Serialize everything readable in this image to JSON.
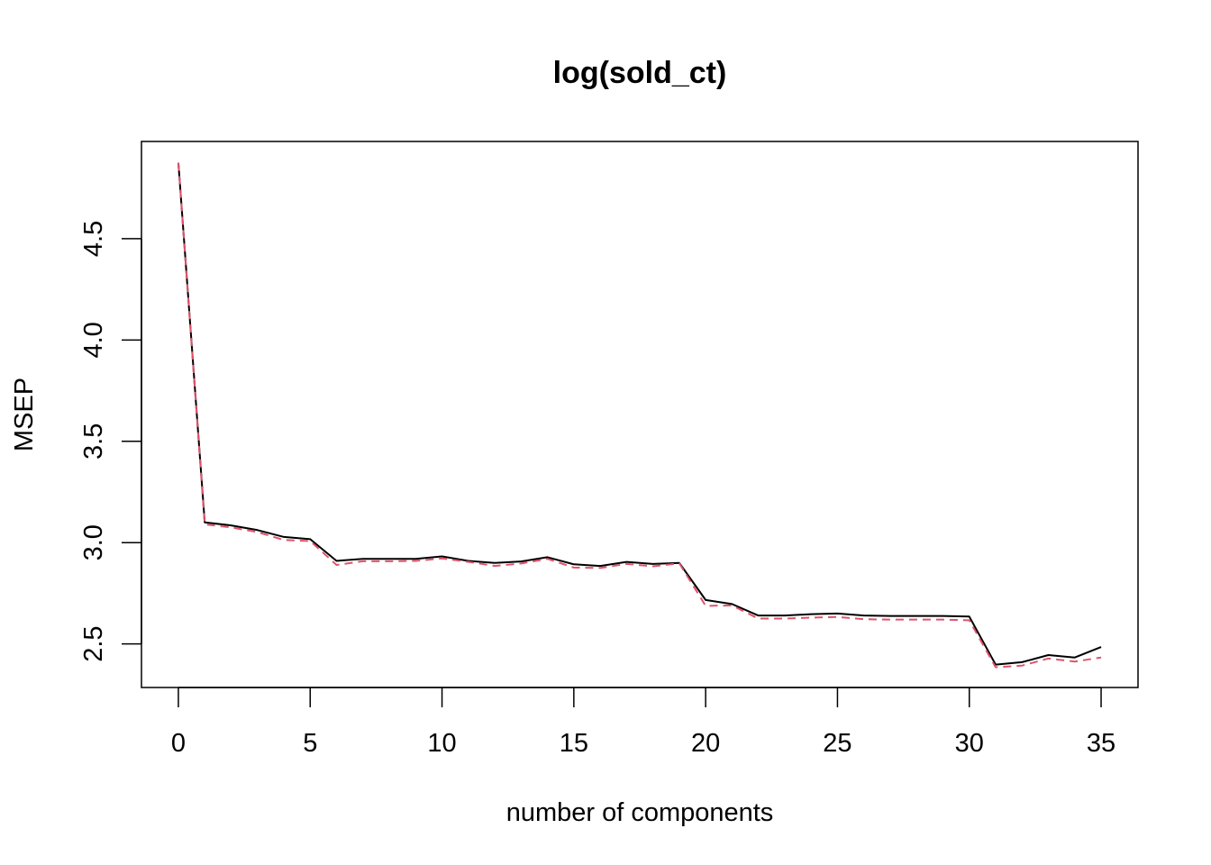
{
  "chart_data": {
    "type": "line",
    "title": "log(sold_ct)",
    "xlabel": "number of components",
    "ylabel": "MSEP",
    "xlim": [
      -1.4,
      36.4
    ],
    "ylim": [
      2.285,
      4.98
    ],
    "x_ticks": [
      0,
      5,
      10,
      15,
      20,
      25,
      30,
      35
    ],
    "y_ticks": [
      2.5,
      3.0,
      3.5,
      4.0,
      4.5
    ],
    "y_tick_labels": [
      "2.5",
      "3.0",
      "3.5",
      "4.0",
      "4.5"
    ],
    "grid": false,
    "legend": "none",
    "x": [
      0,
      1,
      2,
      3,
      4,
      5,
      6,
      7,
      8,
      9,
      10,
      11,
      12,
      13,
      14,
      15,
      16,
      17,
      18,
      19,
      20,
      21,
      22,
      23,
      24,
      25,
      26,
      27,
      28,
      29,
      30,
      31,
      32,
      33,
      34,
      35
    ],
    "series": [
      {
        "color": "#000000",
        "dash": "solid",
        "values": [
          4.875,
          3.1,
          3.085,
          3.062,
          3.028,
          3.017,
          2.91,
          2.92,
          2.92,
          2.92,
          2.932,
          2.91,
          2.9,
          2.907,
          2.928,
          2.893,
          2.885,
          2.905,
          2.895,
          2.9,
          2.717,
          2.697,
          2.64,
          2.64,
          2.647,
          2.65,
          2.64,
          2.638,
          2.638,
          2.638,
          2.635,
          2.398,
          2.41,
          2.445,
          2.433,
          2.485
        ]
      },
      {
        "color": "#DF536B",
        "dash": "dashed",
        "values": [
          4.875,
          3.09,
          3.075,
          3.052,
          3.013,
          3.008,
          2.89,
          2.908,
          2.908,
          2.91,
          2.922,
          2.905,
          2.885,
          2.897,
          2.92,
          2.877,
          2.875,
          2.895,
          2.883,
          2.898,
          2.688,
          2.69,
          2.625,
          2.625,
          2.63,
          2.633,
          2.622,
          2.62,
          2.62,
          2.62,
          2.617,
          2.385,
          2.393,
          2.428,
          2.413,
          2.433
        ]
      }
    ]
  }
}
